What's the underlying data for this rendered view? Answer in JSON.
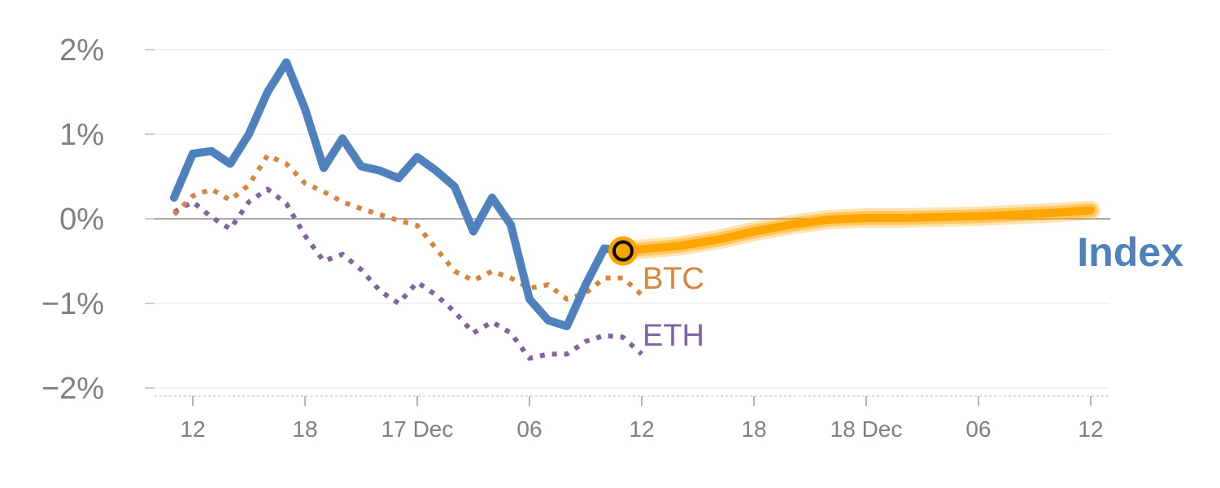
{
  "chart_data": {
    "type": "line",
    "title": "",
    "xlabel": "",
    "ylabel": "",
    "y_unit": "%",
    "ylim": [
      -2.1,
      2.1
    ],
    "grid": true,
    "legend": "inline labels at line ends",
    "y_ticks": [
      {
        "value": 2,
        "label": "2%"
      },
      {
        "value": 1,
        "label": "1%"
      },
      {
        "value": 0,
        "label": "0%"
      },
      {
        "value": -1,
        "label": "−1%"
      },
      {
        "value": -2,
        "label": "−2%"
      }
    ],
    "x_ticks": [
      {
        "x": 0,
        "label": "12"
      },
      {
        "x": 6,
        "label": "18"
      },
      {
        "x": 12,
        "label": "17 Dec"
      },
      {
        "x": 18,
        "label": "06"
      },
      {
        "x": 24,
        "label": "12"
      },
      {
        "x": 30,
        "label": "18"
      },
      {
        "x": 36,
        "label": "18 Dec"
      },
      {
        "x": 42,
        "label": "06"
      },
      {
        "x": 48,
        "label": "12"
      }
    ],
    "x_unit": "hours since 16 Dec 12:00",
    "series": [
      {
        "name": "Index",
        "color": "#4f81bd",
        "style": "solid",
        "x": [
          -1,
          0,
          1,
          2,
          3,
          4,
          5,
          6,
          7,
          8,
          9,
          10,
          11,
          12,
          13,
          14,
          15,
          16,
          17,
          18,
          19,
          20,
          21,
          22,
          23
        ],
        "values": [
          0.25,
          0.77,
          0.8,
          0.65,
          1.0,
          1.5,
          1.85,
          1.3,
          0.6,
          0.95,
          0.62,
          0.57,
          0.48,
          0.73,
          0.57,
          0.38,
          -0.15,
          0.25,
          -0.07,
          -0.95,
          -1.2,
          -1.27,
          -0.78,
          -0.35,
          -0.38
        ]
      },
      {
        "name": "BTC",
        "color": "#d9843b",
        "style": "dotted",
        "x": [
          -1,
          0,
          1,
          2,
          3,
          4,
          5,
          6,
          7,
          8,
          9,
          10,
          11,
          12,
          13,
          14,
          15,
          16,
          17,
          18,
          19,
          20,
          21,
          22,
          23,
          24
        ],
        "values": [
          0.05,
          0.27,
          0.35,
          0.22,
          0.4,
          0.75,
          0.65,
          0.42,
          0.32,
          0.2,
          0.12,
          0.05,
          -0.02,
          -0.08,
          -0.35,
          -0.62,
          -0.73,
          -0.62,
          -0.7,
          -0.82,
          -0.78,
          -0.95,
          -0.88,
          -0.7,
          -0.7,
          -0.9
        ]
      },
      {
        "name": "ETH",
        "color": "#8064a2",
        "style": "dotted",
        "x": [
          -1,
          0,
          1,
          2,
          3,
          4,
          5,
          6,
          7,
          8,
          9,
          10,
          11,
          12,
          13,
          14,
          15,
          16,
          17,
          18,
          19,
          20,
          21,
          22,
          23,
          24
        ],
        "values": [
          0.08,
          0.2,
          0.02,
          -0.12,
          0.2,
          0.35,
          0.18,
          -0.2,
          -0.5,
          -0.42,
          -0.6,
          -0.85,
          -1.0,
          -0.75,
          -0.9,
          -1.1,
          -1.35,
          -1.22,
          -1.35,
          -1.65,
          -1.6,
          -1.6,
          -1.45,
          -1.38,
          -1.4,
          -1.6
        ]
      },
      {
        "name": "",
        "color": "#ffa500",
        "style": "forecast-band",
        "x": [
          23,
          24,
          26,
          28,
          30,
          32,
          34,
          36,
          38,
          40,
          42,
          44,
          46,
          48
        ],
        "values": [
          -0.38,
          -0.36,
          -0.32,
          -0.25,
          -0.15,
          -0.07,
          -0.01,
          0.01,
          0.01,
          0.02,
          0.03,
          0.05,
          0.07,
          0.1
        ]
      }
    ],
    "marker": {
      "x": 23,
      "value": -0.38,
      "stroke": "#000000",
      "fill": "#ffa500"
    }
  }
}
